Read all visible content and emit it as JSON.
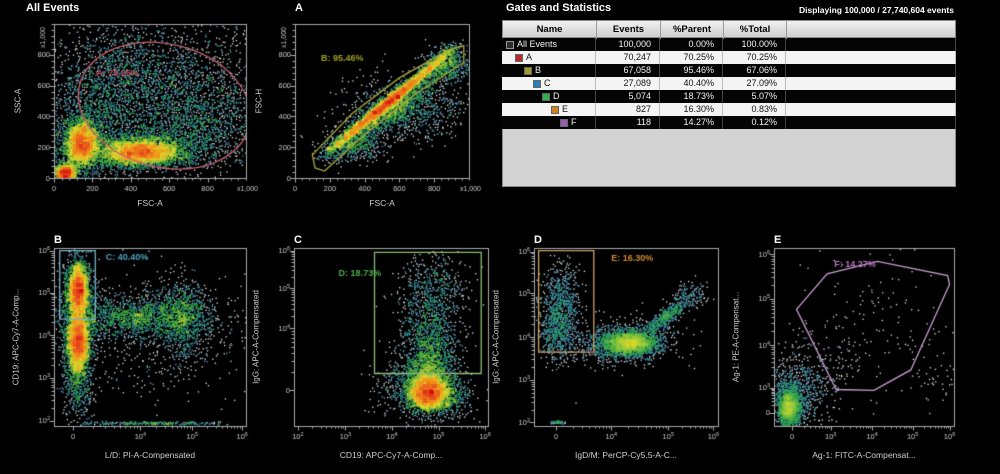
{
  "stats_panel": {
    "title": "Gates and Statistics",
    "displaying": "Displaying 100,000 / 27,740,604 events",
    "columns": [
      "Name",
      "Events",
      "%Parent",
      "%Total"
    ],
    "rows": [
      {
        "name": "All Events",
        "icon": "all-events-icon",
        "icon_color": "#2e2e2e",
        "indent": 0,
        "events": "100,000",
        "parent": "0.00%",
        "total": "100.00%",
        "dark": true
      },
      {
        "name": "A",
        "icon": "gate-a-swatch-icon",
        "icon_color": "#b52a2a",
        "indent": 1,
        "events": "70,247",
        "parent": "70.25%",
        "total": "70.25%",
        "dark": false
      },
      {
        "name": "B",
        "icon": "gate-b-swatch-icon",
        "icon_color": "#9d9a28",
        "indent": 2,
        "events": "67,058",
        "parent": "95.46%",
        "total": "67.06%",
        "dark": true
      },
      {
        "name": "C",
        "icon": "gate-c-swatch-icon",
        "icon_color": "#2980b9",
        "indent": 3,
        "events": "27,089",
        "parent": "40.40%",
        "total": "27.09%",
        "dark": false
      },
      {
        "name": "D",
        "icon": "gate-d-swatch-icon",
        "icon_color": "#2eae4e",
        "indent": 4,
        "events": "5,074",
        "parent": "18.73%",
        "total": "5.07%",
        "dark": true
      },
      {
        "name": "E",
        "icon": "gate-e-swatch-icon",
        "icon_color": "#d2801f",
        "indent": 5,
        "events": "827",
        "parent": "16.30%",
        "total": "0.83%",
        "dark": false
      },
      {
        "name": "F",
        "icon": "gate-f-swatch-icon",
        "icon_color": "#9b59b6",
        "indent": 6,
        "events": "118",
        "parent": "14.27%",
        "total": "0.12%",
        "dark": true
      }
    ]
  },
  "chart_data": [
    {
      "id": "all-events",
      "type": "scatter",
      "title": "All Events",
      "xlabel": "FSC-A",
      "ylabel": "SSC-A",
      "x_mult": "x1,000",
      "y_mult": "x1,000",
      "x_axis": {
        "type": "lin",
        "ticks": [
          {
            "f": 0,
            "l": "0"
          },
          {
            "f": 0.2,
            "l": "200"
          },
          {
            "f": 0.4,
            "l": "400"
          },
          {
            "f": 0.6,
            "l": "600"
          },
          {
            "f": 0.8,
            "l": "800"
          }
        ]
      },
      "y_axis": {
        "type": "lin",
        "ticks": [
          {
            "f": 0,
            "l": "0"
          },
          {
            "f": 0.2,
            "l": "200"
          },
          {
            "f": 0.4,
            "l": "400"
          },
          {
            "f": 0.6,
            "l": "600"
          },
          {
            "f": 0.8,
            "l": "800"
          }
        ]
      },
      "boost": 1,
      "gate": {
        "type": "ellipse",
        "cx": 0.575,
        "cy": 0.47,
        "rx": 0.455,
        "ry": 0.4,
        "rot": 14,
        "color": "#c2606c",
        "label": "A: 70.25%",
        "label_color": "#c04f5c",
        "lx": 0.22,
        "ly": 0.66
      },
      "populations": [
        [
          "g",
          0.145,
          0.225,
          0.042,
          0.075,
          2600
        ],
        [
          "g",
          0.145,
          0.24,
          0.09,
          0.15,
          900
        ],
        [
          "g",
          0.45,
          0.165,
          0.105,
          0.042,
          3300
        ],
        [
          "g",
          0.46,
          0.19,
          0.19,
          0.075,
          1200
        ],
        [
          "g",
          0.06,
          0.035,
          0.028,
          0.028,
          900
        ],
        [
          "g",
          0.55,
          0.56,
          0.3,
          0.25,
          2600
        ],
        [
          "g",
          0.78,
          0.36,
          0.16,
          0.14,
          800
        ],
        [
          "g",
          0.3,
          0.62,
          0.14,
          0.18,
          700
        ]
      ]
    },
    {
      "id": "a",
      "type": "scatter",
      "title": "A",
      "xlabel": "FSC-A",
      "ylabel": "FSC-H",
      "x_mult": "x1,000",
      "y_mult": "x1,000",
      "x_axis": {
        "type": "lin",
        "ticks": [
          {
            "f": 0,
            "l": "0"
          },
          {
            "f": 0.2,
            "l": "200"
          },
          {
            "f": 0.4,
            "l": "400"
          },
          {
            "f": 0.6,
            "l": "600"
          },
          {
            "f": 0.8,
            "l": "800"
          }
        ]
      },
      "y_axis": {
        "type": "lin",
        "ticks": [
          {
            "f": 0,
            "l": "0"
          },
          {
            "f": 0.2,
            "l": "200"
          },
          {
            "f": 0.4,
            "l": "400"
          },
          {
            "f": 0.6,
            "l": "600"
          },
          {
            "f": 0.8,
            "l": "800"
          }
        ]
      },
      "boost": 1,
      "gate": {
        "type": "poly",
        "points": [
          [
            0.115,
            0.065
          ],
          [
            0.1,
            0.15
          ],
          [
            0.33,
            0.42
          ],
          [
            0.6,
            0.65
          ],
          [
            0.88,
            0.83
          ],
          [
            0.97,
            0.86
          ],
          [
            0.97,
            0.75
          ],
          [
            0.7,
            0.55
          ],
          [
            0.42,
            0.3
          ],
          [
            0.17,
            0.045
          ]
        ],
        "color": "#a6a63c",
        "label": "B: 95.46%",
        "label_color": "#9d9d26",
        "lx": 0.15,
        "ly": 0.76
      },
      "populations": [
        [
          "s",
          0.13,
          0.115,
          0.95,
          0.875,
          0.016,
          3600
        ],
        [
          "s",
          0.14,
          0.1,
          0.96,
          0.8,
          0.045,
          1500
        ],
        [
          "g",
          0.62,
          0.44,
          0.17,
          0.1,
          900
        ],
        [
          "g",
          0.88,
          0.74,
          0.07,
          0.06,
          500
        ],
        [
          "g",
          0.33,
          0.2,
          0.09,
          0.05,
          400
        ]
      ]
    },
    {
      "id": "b",
      "type": "scatter",
      "title": "B",
      "xlabel": "L/D: PI-A-Compensated",
      "ylabel": "CD19: APC-Cy7-A-Comp...",
      "x_axis": {
        "type": "log",
        "ticks": [
          {
            "f": 0.1,
            "l": "0"
          },
          {
            "f": 0.45,
            "l": "10^4"
          },
          {
            "f": 0.72,
            "l": "10^5"
          },
          {
            "f": 0.98,
            "l": "10^6"
          }
        ]
      },
      "y_axis": {
        "type": "log",
        "ticks": [
          {
            "f": 0.03,
            "l": "10^2"
          },
          {
            "f": 0.27,
            "l": "10^3"
          },
          {
            "f": 0.51,
            "l": "10^4"
          },
          {
            "f": 0.75,
            "l": "10^5"
          },
          {
            "f": 0.985,
            "l": "10^6"
          }
        ]
      },
      "boost": 1,
      "gate": {
        "type": "rect",
        "x0": 0.03,
        "y0": 0.6,
        "x1": 0.215,
        "y1": 0.985,
        "color": "#74b0cc",
        "label": "C: 40.40%",
        "label_color": "#4f9fc0",
        "lx": 0.27,
        "ly": 0.935
      },
      "populations": [
        [
          "g",
          0.125,
          0.77,
          0.027,
          0.07,
          2400
        ],
        [
          "g",
          0.125,
          0.48,
          0.028,
          0.085,
          2800
        ],
        [
          "g",
          0.13,
          0.62,
          0.05,
          0.17,
          900
        ],
        [
          "g",
          0.43,
          0.61,
          0.2,
          0.055,
          1500
        ],
        [
          "g",
          0.68,
          0.61,
          0.055,
          0.11,
          700
        ],
        [
          "g",
          0.5,
          0.52,
          0.28,
          0.17,
          700
        ],
        [
          "s",
          0.06,
          0.015,
          0.95,
          0.015,
          0.005,
          260
        ],
        [
          "g",
          0.125,
          0.25,
          0.035,
          0.1,
          500
        ]
      ]
    },
    {
      "id": "c",
      "type": "scatter",
      "title": "C",
      "xlabel": "CD19: APC-Cy7-A-Comp...",
      "ylabel": "IgG: APC-A-Compensated",
      "x_axis": {
        "type": "log",
        "ticks": [
          {
            "f": 0.02,
            "l": "10^2"
          },
          {
            "f": 0.265,
            "l": "10^3"
          },
          {
            "f": 0.505,
            "l": "10^4"
          },
          {
            "f": 0.745,
            "l": "10^5"
          },
          {
            "f": 0.985,
            "l": "10^6"
          }
        ]
      },
      "y_axis": {
        "type": "log",
        "ticks": [
          {
            "f": 0.2,
            "l": "0"
          },
          {
            "f": 0.55,
            "l": "10^4"
          },
          {
            "f": 0.775,
            "l": "10^5"
          },
          {
            "f": 0.985,
            "l": "10^6"
          }
        ]
      },
      "boost": 1,
      "gate": {
        "type": "rect",
        "x0": 0.415,
        "y0": 0.295,
        "x1": 0.965,
        "y1": 0.975,
        "color": "#8abd77",
        "label": "D: 18.73%",
        "label_color": "#4cae4c",
        "lx": 0.23,
        "ly": 0.84
      },
      "populations": [
        [
          "g",
          0.695,
          0.185,
          0.052,
          0.05,
          3200
        ],
        [
          "g",
          0.695,
          0.3,
          0.065,
          0.09,
          1200
        ],
        [
          "g",
          0.7,
          0.52,
          0.075,
          0.13,
          800
        ],
        [
          "g",
          0.72,
          0.77,
          0.085,
          0.1,
          450
        ],
        [
          "g",
          0.62,
          0.21,
          0.1,
          0.07,
          500
        ],
        [
          "g",
          0.8,
          0.16,
          0.07,
          0.06,
          350
        ]
      ]
    },
    {
      "id": "d",
      "type": "scatter",
      "title": "D",
      "xlabel": "IgD/M: PerCP-Cy5.5-A-C...",
      "ylabel": "IgG: APC-A-Compensated",
      "x_axis": {
        "type": "log",
        "ticks": [
          {
            "f": 0.12,
            "l": "0"
          },
          {
            "f": 0.42,
            "l": "10^4"
          },
          {
            "f": 0.73,
            "l": "10^5"
          },
          {
            "f": 0.975,
            "l": "10^6"
          }
        ]
      },
      "y_axis": {
        "type": "log",
        "ticks": [
          {
            "f": 0.02,
            "l": "10^2"
          },
          {
            "f": 0.26,
            "l": "10^3"
          },
          {
            "f": 0.5,
            "l": "10^4"
          },
          {
            "f": 0.745,
            "l": "10^5"
          },
          {
            "f": 0.98,
            "l": "10^6"
          }
        ]
      },
      "boost": 6,
      "gate": {
        "type": "rect",
        "x0": 0.025,
        "y0": 0.415,
        "x1": 0.325,
        "y1": 0.985,
        "color": "#c9a266",
        "label": "E: 16.30%",
        "label_color": "#cf8a30",
        "lx": 0.42,
        "ly": 0.925
      },
      "populations": [
        [
          "g",
          0.145,
          0.66,
          0.055,
          0.12,
          800
        ],
        [
          "g",
          0.13,
          0.5,
          0.045,
          0.07,
          300
        ],
        [
          "g",
          0.52,
          0.465,
          0.075,
          0.034,
          2300
        ],
        [
          "g",
          0.53,
          0.48,
          0.115,
          0.06,
          650
        ],
        [
          "s",
          0.6,
          0.52,
          0.84,
          0.71,
          0.02,
          420
        ],
        [
          "g",
          0.86,
          0.73,
          0.05,
          0.04,
          140
        ],
        [
          "g",
          0.37,
          0.45,
          0.09,
          0.05,
          240
        ],
        [
          "s",
          0.07,
          0.02,
          0.18,
          0.02,
          0.004,
          50
        ]
      ]
    },
    {
      "id": "e",
      "type": "scatter",
      "title": "E",
      "xlabel": "Ag-1: FITC-A-Compensat...",
      "ylabel": "Ag-1: PE-A-Compensat...",
      "x_axis": {
        "type": "log",
        "ticks": [
          {
            "f": 0.1,
            "l": "0"
          },
          {
            "f": 0.315,
            "l": "10^3"
          },
          {
            "f": 0.545,
            "l": "10^4"
          },
          {
            "f": 0.77,
            "l": "10^5"
          },
          {
            "f": 0.975,
            "l": "10^6"
          }
        ]
      },
      "y_axis": {
        "type": "log",
        "ticks": [
          {
            "f": 0.075,
            "l": "0"
          },
          {
            "f": 0.215,
            "l": "10^3"
          },
          {
            "f": 0.455,
            "l": "10^4"
          },
          {
            "f": 0.715,
            "l": "10^5"
          },
          {
            "f": 0.965,
            "l": "10^6"
          }
        ]
      },
      "boost": 8,
      "gate": {
        "type": "poly",
        "points": [
          [
            0.125,
            0.655
          ],
          [
            0.295,
            0.855
          ],
          [
            0.575,
            0.925
          ],
          [
            0.965,
            0.845
          ],
          [
            0.975,
            0.795
          ],
          [
            0.76,
            0.315
          ],
          [
            0.555,
            0.2
          ],
          [
            0.345,
            0.205
          ]
        ],
        "color": "#c79ece",
        "label": "F: 14.27%",
        "label_color": "#b873c4",
        "lx": 0.335,
        "ly": 0.895
      },
      "populations": [
        [
          "g",
          0.085,
          0.105,
          0.032,
          0.05,
          1500
        ],
        [
          "g",
          0.1,
          0.15,
          0.065,
          0.09,
          600
        ],
        [
          "g",
          0.19,
          0.27,
          0.1,
          0.12,
          330
        ],
        [
          "g",
          0.5,
          0.55,
          0.22,
          0.2,
          150
        ],
        [
          "g",
          0.86,
          0.28,
          0.07,
          0.09,
          40
        ]
      ]
    }
  ]
}
